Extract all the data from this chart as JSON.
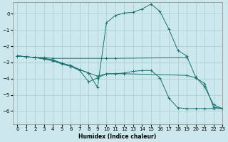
{
  "xlabel": "Humidex (Indice chaleur)",
  "background_color": "#cce8ec",
  "grid_color": "#aacfd4",
  "line_color": "#1a7070",
  "lines": [
    {
      "x": [
        0,
        1,
        2,
        3,
        4,
        10,
        11,
        19
      ],
      "y": [
        -2.6,
        -2.65,
        -2.7,
        -2.7,
        -2.75,
        -2.75,
        -2.75,
        -2.7
      ]
    },
    {
      "x": [
        0,
        1,
        2,
        3,
        4,
        5,
        6,
        7,
        8,
        9,
        10,
        11,
        12,
        19,
        20,
        21,
        22,
        23
      ],
      "y": [
        -2.6,
        -2.65,
        -2.7,
        -2.75,
        -2.85,
        -3.05,
        -3.2,
        -3.45,
        -3.65,
        -3.85,
        -3.7,
        -3.7,
        -3.7,
        -3.8,
        -3.95,
        -4.3,
        -5.75,
        -5.85
      ]
    },
    {
      "x": [
        0,
        1,
        2,
        3,
        4,
        5,
        6,
        7,
        8,
        9,
        10,
        11,
        12,
        13,
        14,
        15,
        16,
        17,
        18,
        19,
        20,
        21,
        22,
        23
      ],
      "y": [
        -2.6,
        -2.65,
        -2.7,
        -2.75,
        -2.85,
        -3.05,
        -3.2,
        -3.45,
        -3.65,
        -4.55,
        -0.55,
        -0.1,
        0.05,
        0.1,
        0.3,
        0.6,
        0.15,
        -0.95,
        -2.25,
        -2.6,
        -3.9,
        -4.5,
        -5.6,
        -5.85
      ]
    },
    {
      "x": [
        0,
        1,
        2,
        3,
        4,
        5,
        6,
        7,
        8,
        9,
        10,
        11,
        12,
        13,
        14,
        15,
        16,
        17,
        18,
        19,
        20,
        21,
        22,
        23
      ],
      "y": [
        -2.6,
        -2.65,
        -2.7,
        -2.8,
        -2.9,
        -3.1,
        -3.25,
        -3.5,
        -4.2,
        -3.95,
        -3.7,
        -3.7,
        -3.65,
        -3.55,
        -3.5,
        -3.5,
        -3.95,
        -5.2,
        -5.8,
        -5.85,
        -5.85,
        -5.85,
        -5.85,
        -5.85
      ]
    }
  ],
  "xlim": [
    -0.5,
    23
  ],
  "ylim": [
    -6.8,
    0.7
  ],
  "yticks": [
    0,
    -1,
    -2,
    -3,
    -4,
    -5,
    -6
  ],
  "xticks": [
    0,
    1,
    2,
    3,
    4,
    5,
    6,
    7,
    8,
    9,
    10,
    11,
    12,
    13,
    14,
    15,
    16,
    17,
    18,
    19,
    20,
    21,
    22,
    23
  ]
}
